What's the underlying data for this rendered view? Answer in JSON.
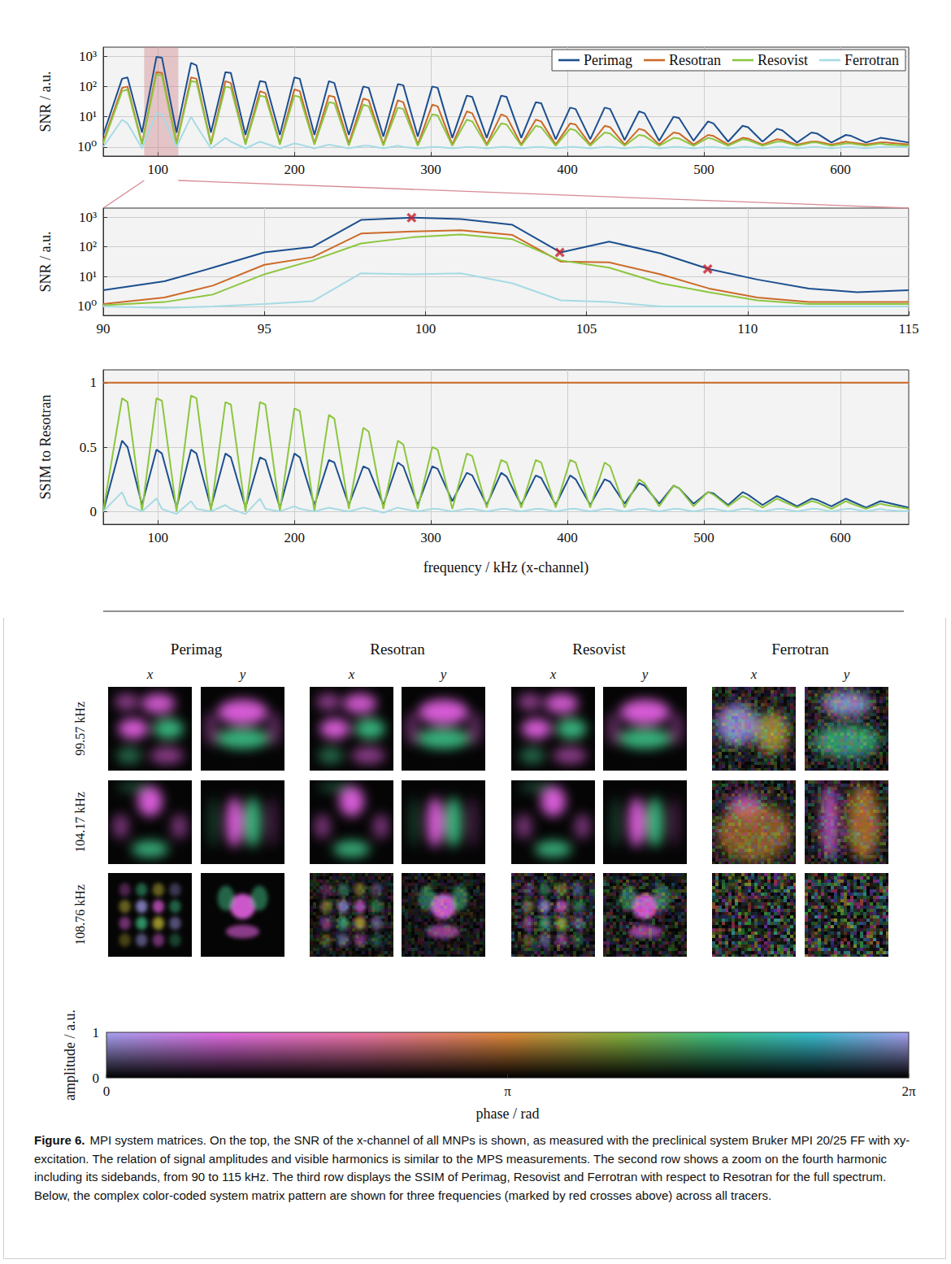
{
  "chart_data": [
    {
      "type": "line",
      "ylabel": "SNR / a.u.",
      "log": "y",
      "grid": true,
      "legend": "upper right",
      "highlight_range": [
        90,
        115
      ],
      "xlim": [
        60,
        650
      ],
      "xticks": [
        100,
        200,
        300,
        400,
        500,
        600
      ],
      "ylim": [
        0.5,
        2000
      ],
      "yticks": [
        {
          "value": 1,
          "label": "10⁰"
        },
        {
          "value": 10,
          "label": "10¹"
        },
        {
          "value": 100,
          "label": "10²"
        },
        {
          "value": 1000,
          "label": "10³"
        }
      ],
      "x": [
        60,
        73.8,
        77.8,
        88.4,
        99,
        103,
        113.7,
        124.3,
        128.3,
        138.9,
        149.5,
        153.5,
        164.2,
        174.8,
        178.8,
        189.4,
        200,
        204,
        214.7,
        225.3,
        229.3,
        239.9,
        250.5,
        254.5,
        265.2,
        275.8,
        279.8,
        290.4,
        301,
        305,
        315.7,
        326.3,
        330.3,
        340.9,
        351.5,
        355.5,
        366.2,
        376.8,
        380.8,
        391.4,
        402,
        406,
        416.7,
        427.3,
        431.3,
        441.9,
        452.5,
        456.5,
        467.2,
        477.8,
        481.8,
        492.4,
        503,
        507,
        517.7,
        528.3,
        532.3,
        542.9,
        553.5,
        557.5,
        568.2,
        578.8,
        582.8,
        593.4,
        604,
        608,
        618.7,
        629.3,
        633.3,
        650
      ],
      "series": [
        {
          "name": "Perimag",
          "color": "#1c4f8f",
          "values": [
            2.5,
            180,
            200,
            3,
            950,
            900,
            3,
            600,
            500,
            3,
            300,
            280,
            2.5,
            150,
            140,
            2.5,
            200,
            180,
            2.5,
            150,
            130,
            2.5,
            100,
            90,
            2.2,
            120,
            110,
            2.2,
            100,
            90,
            2,
            50,
            45,
            2,
            50,
            45,
            2,
            30,
            28,
            1.8,
            20,
            18,
            1.8,
            20,
            18,
            1.7,
            15,
            13,
            1.6,
            10,
            9,
            1.6,
            7,
            6,
            1.5,
            5,
            4.5,
            1.5,
            4,
            3.5,
            1.4,
            3,
            2.8,
            1.4,
            2.5,
            2.3,
            1.4,
            2,
            1.9,
            1.4
          ]
        },
        {
          "name": "Resotran",
          "color": "#cc6a28",
          "values": [
            1.5,
            90,
            100,
            1.3,
            300,
            280,
            1.3,
            200,
            180,
            1.3,
            150,
            130,
            1.3,
            70,
            60,
            1.3,
            80,
            70,
            1.3,
            50,
            45,
            1.3,
            40,
            35,
            1.2,
            35,
            30,
            1.2,
            25,
            22,
            1.2,
            15,
            13,
            1.2,
            12,
            10,
            1.2,
            8,
            7,
            1.2,
            6,
            5.5,
            1.2,
            5,
            4.5,
            1.2,
            4,
            3.5,
            1.2,
            3,
            2.8,
            1.2,
            2.5,
            2.3,
            1.2,
            2,
            1.9,
            1.2,
            1.8,
            1.7,
            1.2,
            1.5,
            1.5,
            1.2,
            1.5,
            1.4,
            1.2,
            1.4,
            1.4,
            1.2
          ]
        },
        {
          "name": "Resovist",
          "color": "#8cc63f",
          "values": [
            1.3,
            70,
            80,
            1.2,
            250,
            230,
            1.2,
            150,
            140,
            1.2,
            100,
            90,
            1.2,
            50,
            45,
            1.2,
            50,
            45,
            1.2,
            30,
            28,
            1.1,
            25,
            22,
            1.1,
            20,
            18,
            1.1,
            12,
            11,
            1.1,
            8,
            7,
            1.1,
            6,
            5.5,
            1.1,
            5,
            4.5,
            1.1,
            4,
            3.5,
            1.1,
            3,
            2.8,
            1.1,
            2.5,
            2.3,
            1.1,
            2,
            1.9,
            1.1,
            2,
            1.8,
            1.1,
            1.8,
            1.7,
            1.1,
            1.5,
            1.5,
            1.1,
            1.4,
            1.4,
            1.1,
            1.3,
            1.3,
            1.1,
            1.3,
            1.2,
            1.1
          ]
        },
        {
          "name": "Ferrotran",
          "color": "#a6dbe4",
          "values": [
            1.0,
            8,
            6,
            0.9,
            13,
            12,
            1.0,
            10,
            5,
            0.9,
            2,
            1.5,
            0.9,
            1.5,
            1.3,
            0.9,
            1.3,
            1.2,
            0.9,
            1.2,
            1.1,
            0.9,
            1.1,
            1.1,
            0.9,
            1.1,
            1.0,
            0.9,
            1.0,
            1.0,
            0.9,
            1.0,
            1.0,
            0.9,
            1.0,
            1.0,
            0.9,
            1.0,
            1.0,
            0.9,
            1.0,
            1.0,
            0.9,
            1.0,
            1.0,
            0.9,
            1.0,
            1.0,
            0.9,
            1.0,
            1.0,
            0.9,
            1.0,
            1.0,
            0.9,
            1.0,
            1.0,
            0.9,
            1.0,
            1.0,
            0.9,
            1.0,
            1.0,
            0.9,
            1.0,
            1.0,
            0.9,
            1.0,
            1.0,
            1.0
          ]
        }
      ]
    },
    {
      "type": "line",
      "ylabel": "SNR / a.u.",
      "log": "y",
      "grid": true,
      "xlim": [
        90,
        115
      ],
      "xticks": [
        90,
        95,
        100,
        105,
        110,
        115
      ],
      "ylim": [
        0.5,
        2000
      ],
      "yticks": [
        {
          "value": 1,
          "label": "10⁰"
        },
        {
          "value": 10,
          "label": "10¹"
        },
        {
          "value": 100,
          "label": "10²"
        },
        {
          "value": 1000,
          "label": "10³"
        }
      ],
      "x": [
        90,
        91.9,
        93.4,
        95.0,
        96.5,
        98.0,
        99.6,
        101.1,
        102.7,
        104.2,
        105.7,
        107.3,
        108.8,
        110.3,
        111.9,
        113.4,
        115.0
      ],
      "series": [
        {
          "name": "Perimag",
          "color": "#1c4f8f",
          "values": [
            3.5,
            7,
            20,
            65,
            100,
            800,
            950,
            850,
            550,
            65,
            150,
            60,
            18,
            8,
            4,
            3,
            3.5
          ]
        },
        {
          "name": "Resotran",
          "color": "#cc6a28",
          "values": [
            1.2,
            2,
            5,
            25,
            45,
            280,
            330,
            360,
            250,
            32,
            30,
            12,
            4,
            2,
            1.4,
            1.4,
            1.4
          ]
        },
        {
          "name": "Resovist",
          "color": "#8cc63f",
          "values": [
            1.1,
            1.4,
            2.5,
            12,
            35,
            130,
            210,
            260,
            180,
            35,
            20,
            6,
            3,
            1.6,
            1.2,
            1.2,
            1.2
          ]
        },
        {
          "name": "Ferrotran",
          "color": "#a6dbe4",
          "values": [
            1.0,
            0.9,
            1.0,
            1.2,
            1.5,
            13,
            12,
            13,
            6,
            1.6,
            1.4,
            1,
            1,
            1,
            1,
            1,
            1
          ]
        }
      ],
      "markers": {
        "x": [
          99.57,
          104.17,
          108.76
        ],
        "y": [
          950,
          65,
          18
        ],
        "color": "#c4202c",
        "marker": "x"
      }
    },
    {
      "type": "line",
      "xlabel": "frequency / kHz (x-channel)",
      "ylabel": "SSIM to Resotran",
      "grid": true,
      "xlim": [
        60,
        650
      ],
      "xticks": [
        100,
        200,
        300,
        400,
        500,
        600
      ],
      "ylim": [
        -0.1,
        1.1
      ],
      "yticks": [
        0,
        0.5,
        1
      ],
      "x": [
        60,
        73.8,
        77.8,
        88.4,
        99,
        103,
        113.7,
        124.3,
        128.3,
        138.9,
        149.5,
        153.5,
        164.2,
        174.8,
        178.8,
        189.4,
        200,
        204,
        214.7,
        225.3,
        229.3,
        239.9,
        250.5,
        254.5,
        265.2,
        275.8,
        279.8,
        290.4,
        301,
        305,
        315.7,
        326.3,
        330.3,
        340.9,
        351.5,
        355.5,
        366.2,
        376.8,
        380.8,
        391.4,
        402,
        406,
        416.7,
        427.3,
        431.3,
        441.9,
        452.5,
        456.5,
        467.2,
        477.8,
        481.8,
        492.4,
        503,
        507,
        517.7,
        528.3,
        532.3,
        542.9,
        553.5,
        557.5,
        568.2,
        578.8,
        582.8,
        593.4,
        604,
        608,
        618.7,
        629.3,
        633.3,
        650
      ],
      "series": [
        {
          "name": "Perimag",
          "color": "#1c4f8f",
          "values": [
            0.0,
            0.55,
            0.5,
            0.05,
            0.48,
            0.45,
            0.03,
            0.48,
            0.45,
            0.03,
            0.45,
            0.42,
            0.03,
            0.42,
            0.4,
            0.03,
            0.45,
            0.42,
            0.05,
            0.4,
            0.38,
            0.05,
            0.35,
            0.33,
            0.05,
            0.38,
            0.35,
            0.05,
            0.35,
            0.33,
            0.08,
            0.3,
            0.28,
            0.05,
            0.3,
            0.27,
            0.05,
            0.28,
            0.26,
            0.05,
            0.28,
            0.25,
            0.05,
            0.25,
            0.23,
            0.06,
            0.22,
            0.2,
            0.06,
            0.2,
            0.18,
            0.06,
            0.15,
            0.14,
            0.05,
            0.15,
            0.13,
            0.05,
            0.12,
            0.1,
            0.04,
            0.1,
            0.09,
            0.04,
            0.1,
            0.08,
            0.03,
            0.08,
            0.07,
            0.03
          ]
        },
        {
          "name": "Resotran",
          "color": "#cc6a28",
          "values": [
            1,
            1,
            1,
            1,
            1,
            1,
            1,
            1,
            1,
            1,
            1,
            1,
            1,
            1,
            1,
            1,
            1,
            1,
            1,
            1,
            1,
            1,
            1,
            1,
            1,
            1,
            1,
            1,
            1,
            1,
            1,
            1,
            1,
            1,
            1,
            1,
            1,
            1,
            1,
            1,
            1,
            1,
            1,
            1,
            1,
            1,
            1,
            1,
            1,
            1,
            1,
            1,
            1,
            1,
            1,
            1,
            1,
            1,
            1,
            1,
            1,
            1,
            1,
            1,
            1,
            1,
            1,
            1,
            1,
            1
          ]
        },
        {
          "name": "Resovist",
          "color": "#8cc63f",
          "values": [
            0.0,
            0.88,
            0.85,
            0.0,
            0.88,
            0.86,
            0.0,
            0.9,
            0.88,
            0.0,
            0.85,
            0.83,
            0.0,
            0.85,
            0.83,
            0.0,
            0.8,
            0.78,
            0.0,
            0.75,
            0.72,
            0.02,
            0.65,
            0.62,
            0.02,
            0.55,
            0.52,
            0.02,
            0.5,
            0.48,
            0.02,
            0.45,
            0.43,
            0.03,
            0.4,
            0.38,
            0.03,
            0.4,
            0.38,
            0.03,
            0.4,
            0.38,
            0.03,
            0.38,
            0.35,
            0.03,
            0.25,
            0.22,
            0.04,
            0.2,
            0.18,
            0.04,
            0.15,
            0.13,
            0.04,
            0.12,
            0.1,
            0.03,
            0.1,
            0.08,
            0.03,
            0.08,
            0.07,
            0.02,
            0.08,
            0.06,
            0.02,
            0.06,
            0.05,
            0.02
          ]
        },
        {
          "name": "Ferrotran",
          "color": "#a6dbe4",
          "values": [
            0.0,
            0.15,
            0.05,
            0.0,
            0.1,
            0.02,
            -0.02,
            0.08,
            0.02,
            0.0,
            0.05,
            0.02,
            -0.02,
            0.1,
            0.02,
            0.0,
            0.04,
            0.02,
            0.0,
            0.03,
            0.02,
            0.0,
            0.03,
            0.02,
            -0.01,
            0.03,
            0.02,
            0.0,
            0.02,
            0.02,
            0.0,
            0.02,
            0.02,
            0.0,
            0.02,
            0.02,
            0.0,
            0.02,
            0.02,
            0.0,
            0.02,
            0.02,
            0.0,
            0.02,
            0.02,
            0.0,
            0.02,
            0.02,
            0.0,
            0.02,
            0.02,
            0.0,
            0.02,
            0.02,
            0.0,
            0.02,
            0.02,
            0.0,
            0.02,
            0.02,
            0.0,
            0.02,
            0.02,
            0.0,
            0.02,
            0.02,
            0.0,
            0.02,
            0.01,
            0.0
          ]
        }
      ]
    }
  ],
  "image_grid": {
    "columns": [
      {
        "name": "Perimag",
        "channels": [
          "x",
          "y"
        ]
      },
      {
        "name": "Resotran",
        "channels": [
          "x",
          "y"
        ]
      },
      {
        "name": "Resovist",
        "channels": [
          "x",
          "y"
        ]
      },
      {
        "name": "Ferrotran",
        "channels": [
          "x",
          "y"
        ]
      }
    ],
    "rows": [
      "99.57 kHz",
      "104.17 kHz",
      "108.76 kHz"
    ]
  },
  "colorbar": {
    "xlabel": "phase / rad",
    "ylabel": "amplitude / a.u.",
    "xlim": [
      0,
      6.2832
    ],
    "xticks": [
      0,
      {
        "value": 3.1416,
        "label": "π"
      },
      {
        "value": 6.2832,
        "label": "2π"
      }
    ],
    "ylim": [
      0,
      1
    ],
    "yticks": [
      0,
      1
    ]
  },
  "caption": {
    "label": "Figure 6.",
    "text": "MPI system matrices. On the top, the SNR of the x-channel of all MNPs is shown, as measured with the preclinical system Bruker MPI 20/25 FF with xy-excitation. The relation of signal amplitudes and visible harmonics is similar to the MPS measurements. The second row shows a zoom on the fourth harmonic including its sidebands, from 90 to 115 kHz. The third row displays the SSIM of Perimag, Resovist and Ferrotran with respect to Resotran for the full spectrum. Below, the complex color-coded system matrix pattern are shown for three frequencies (marked by red crosses above) across all tracers."
  }
}
